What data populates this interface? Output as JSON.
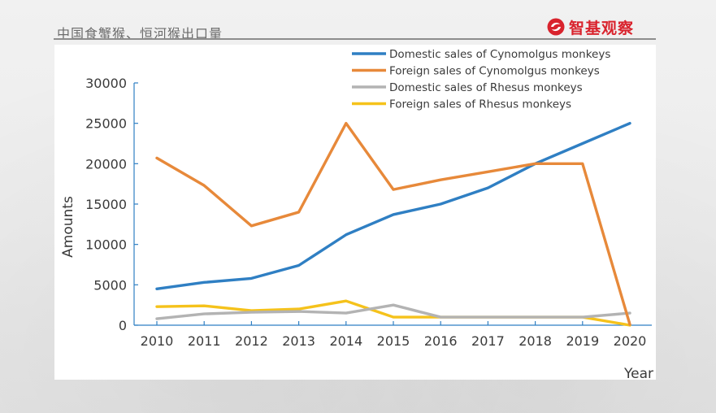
{
  "header": {
    "title": "中国食蟹猴、恒河猴出口量",
    "logo_text": "智基观察"
  },
  "colors": {
    "domestic_cyno": "#2f7fc3",
    "foreign_cyno": "#e7893a",
    "domestic_rhesus": "#b3b3b3",
    "foreign_rhesus": "#f5c21b"
  },
  "chart_data": {
    "type": "line",
    "title": "",
    "xlabel": "Year",
    "ylabel": "Amounts",
    "x": [
      2010,
      2011,
      2012,
      2013,
      2014,
      2015,
      2016,
      2017,
      2018,
      2019,
      2020
    ],
    "x_tick_labels": [
      "2010",
      "2011",
      "2012",
      "2013",
      "2014",
      "2015",
      "2016",
      "2017",
      "2018",
      "2019",
      "2020"
    ],
    "ylim": [
      0,
      30000
    ],
    "y_ticks": [
      0,
      5000,
      10000,
      15000,
      20000,
      25000,
      30000
    ],
    "y_tick_labels": [
      "0",
      "5000",
      "10000",
      "15000",
      "20000",
      "25000",
      "30000"
    ],
    "grid": false,
    "legend_position": "top-right",
    "series": [
      {
        "name": "Domestic sales of Cynomolgus monkeys",
        "color_key": "domestic_cyno",
        "values": [
          4500,
          5300,
          5800,
          7400,
          11200,
          13700,
          15000,
          17000,
          20000,
          22500,
          25000
        ]
      },
      {
        "name": "Foreign sales of Cynomolgus monkeys",
        "color_key": "foreign_cyno",
        "values": [
          20700,
          17300,
          12300,
          14000,
          25000,
          16800,
          18000,
          19000,
          20000,
          20000,
          100
        ]
      },
      {
        "name": "Domestic sales of Rhesus monkeys",
        "color_key": "domestic_rhesus",
        "values": [
          800,
          1400,
          1600,
          1700,
          1500,
          2500,
          1000,
          1000,
          1000,
          1000,
          1500
        ]
      },
      {
        "name": "Foreign sales of Rhesus monkeys",
        "color_key": "foreign_rhesus",
        "values": [
          2300,
          2400,
          1800,
          2000,
          3000,
          1000,
          1000,
          1000,
          1000,
          1000,
          0
        ]
      }
    ]
  }
}
